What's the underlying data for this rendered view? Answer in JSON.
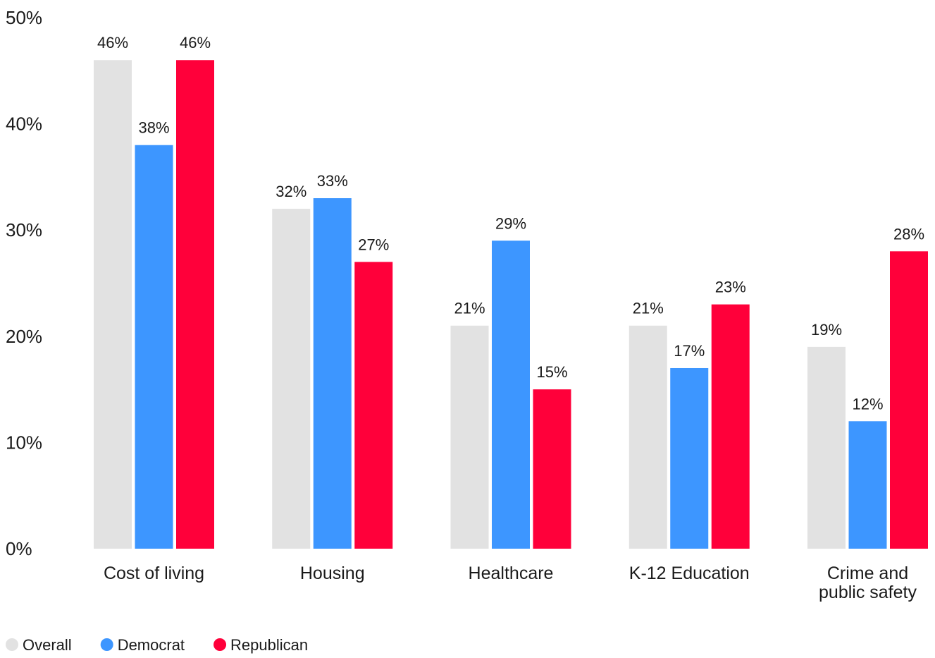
{
  "chart_data": {
    "type": "bar",
    "title": "",
    "xlabel": "",
    "ylabel": "",
    "ylim": [
      0,
      50
    ],
    "yticks": [
      0,
      10,
      20,
      30,
      40,
      50
    ],
    "ytick_format": "{v}%",
    "grid": false,
    "legend_position": "bottom-left",
    "categories": [
      [
        "Cost of living"
      ],
      [
        "Housing"
      ],
      [
        "Healthcare"
      ],
      [
        "K-12 Education"
      ],
      [
        "Crime and",
        "public safety"
      ]
    ],
    "series": [
      {
        "name": "Overall",
        "color": "#e2e2e2",
        "values": [
          46,
          32,
          21,
          21,
          19
        ]
      },
      {
        "name": "Democrat",
        "color": "#3d96ff",
        "values": [
          38,
          33,
          29,
          17,
          12
        ]
      },
      {
        "name": "Republican",
        "color": "#ff003a",
        "values": [
          46,
          27,
          15,
          23,
          28
        ]
      }
    ],
    "value_label_suffix": "%"
  }
}
